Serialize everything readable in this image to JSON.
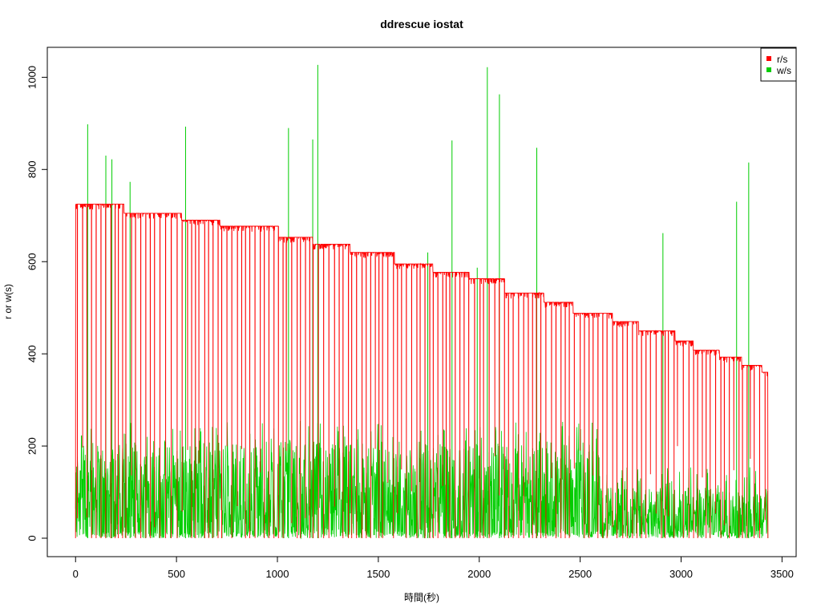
{
  "chart_data": {
    "type": "line",
    "title": "ddrescue iostat",
    "xlabel": "時間(秒)",
    "ylabel": "r or w(s)",
    "xlim": [
      -140,
      3570
    ],
    "ylim": [
      -40,
      1065
    ],
    "x_ticks": [
      "0",
      "500",
      "1000",
      "1500",
      "2000",
      "2500",
      "3000",
      "3500"
    ],
    "y_ticks": [
      "0",
      "200",
      "400",
      "600",
      "800",
      "1000"
    ],
    "legend": {
      "position": "top-right",
      "entries": [
        "r/s",
        "w/s"
      ]
    },
    "series": [
      {
        "name": "r/s",
        "color": "#ff0000",
        "plateaus": [
          {
            "x": [
              0,
              240
            ],
            "y": 725
          },
          {
            "x": 240,
            "y_end": 705,
            "x_end": 525
          },
          {
            "x": [
              525,
              715
            ],
            "y": 690
          },
          {
            "x": [
              715,
              1005
            ],
            "y": 677
          },
          {
            "x": [
              1005,
              1175
            ],
            "y": 653
          },
          {
            "x": [
              1175,
              1360
            ],
            "y": 638
          },
          {
            "x": [
              1360,
              1580
            ],
            "y": 620
          },
          {
            "x": [
              1580,
              1770
            ],
            "y": 595
          },
          {
            "x": [
              1770,
              1950
            ],
            "y": 577
          },
          {
            "x": [
              1950,
              2125
            ],
            "y": 563
          },
          {
            "x": [
              2125,
              2320
            ],
            "y": 532
          },
          {
            "x": [
              2320,
              2465
            ],
            "y": 512
          },
          {
            "x": [
              2465,
              2660
            ],
            "y": 488
          },
          {
            "x": [
              2660,
              2790
            ],
            "y": 470
          },
          {
            "x": [
              2790,
              2970
            ],
            "y": 450
          },
          {
            "x": [
              2970,
              3060
            ],
            "y": 428
          },
          {
            "x": [
              3060,
              3190
            ],
            "y": 408
          },
          {
            "x": [
              3190,
              3300
            ],
            "y": 393
          },
          {
            "x": [
              3300,
              3400
            ],
            "y": 375
          },
          {
            "x": [
              3400,
              3430
            ],
            "y": 360
          }
        ],
        "drops_to_zero_approx_every_sec": 22
      },
      {
        "name": "w/s",
        "color": "#00cd00",
        "band_max_approx": 210,
        "band_max_late_approx": 110,
        "spikes": [
          {
            "x": 60,
            "y": 898
          },
          {
            "x": 150,
            "y": 830
          },
          {
            "x": 180,
            "y": 822
          },
          {
            "x": 270,
            "y": 773
          },
          {
            "x": 545,
            "y": 893
          },
          {
            "x": 1055,
            "y": 890
          },
          {
            "x": 1175,
            "y": 865
          },
          {
            "x": 1200,
            "y": 1027
          },
          {
            "x": 1745,
            "y": 620
          },
          {
            "x": 1865,
            "y": 863
          },
          {
            "x": 1990,
            "y": 587
          },
          {
            "x": 2040,
            "y": 1022
          },
          {
            "x": 2100,
            "y": 963
          },
          {
            "x": 2285,
            "y": 847
          },
          {
            "x": 2910,
            "y": 662
          },
          {
            "x": 3275,
            "y": 730
          },
          {
            "x": 3335,
            "y": 815
          }
        ]
      }
    ],
    "grid": false
  }
}
